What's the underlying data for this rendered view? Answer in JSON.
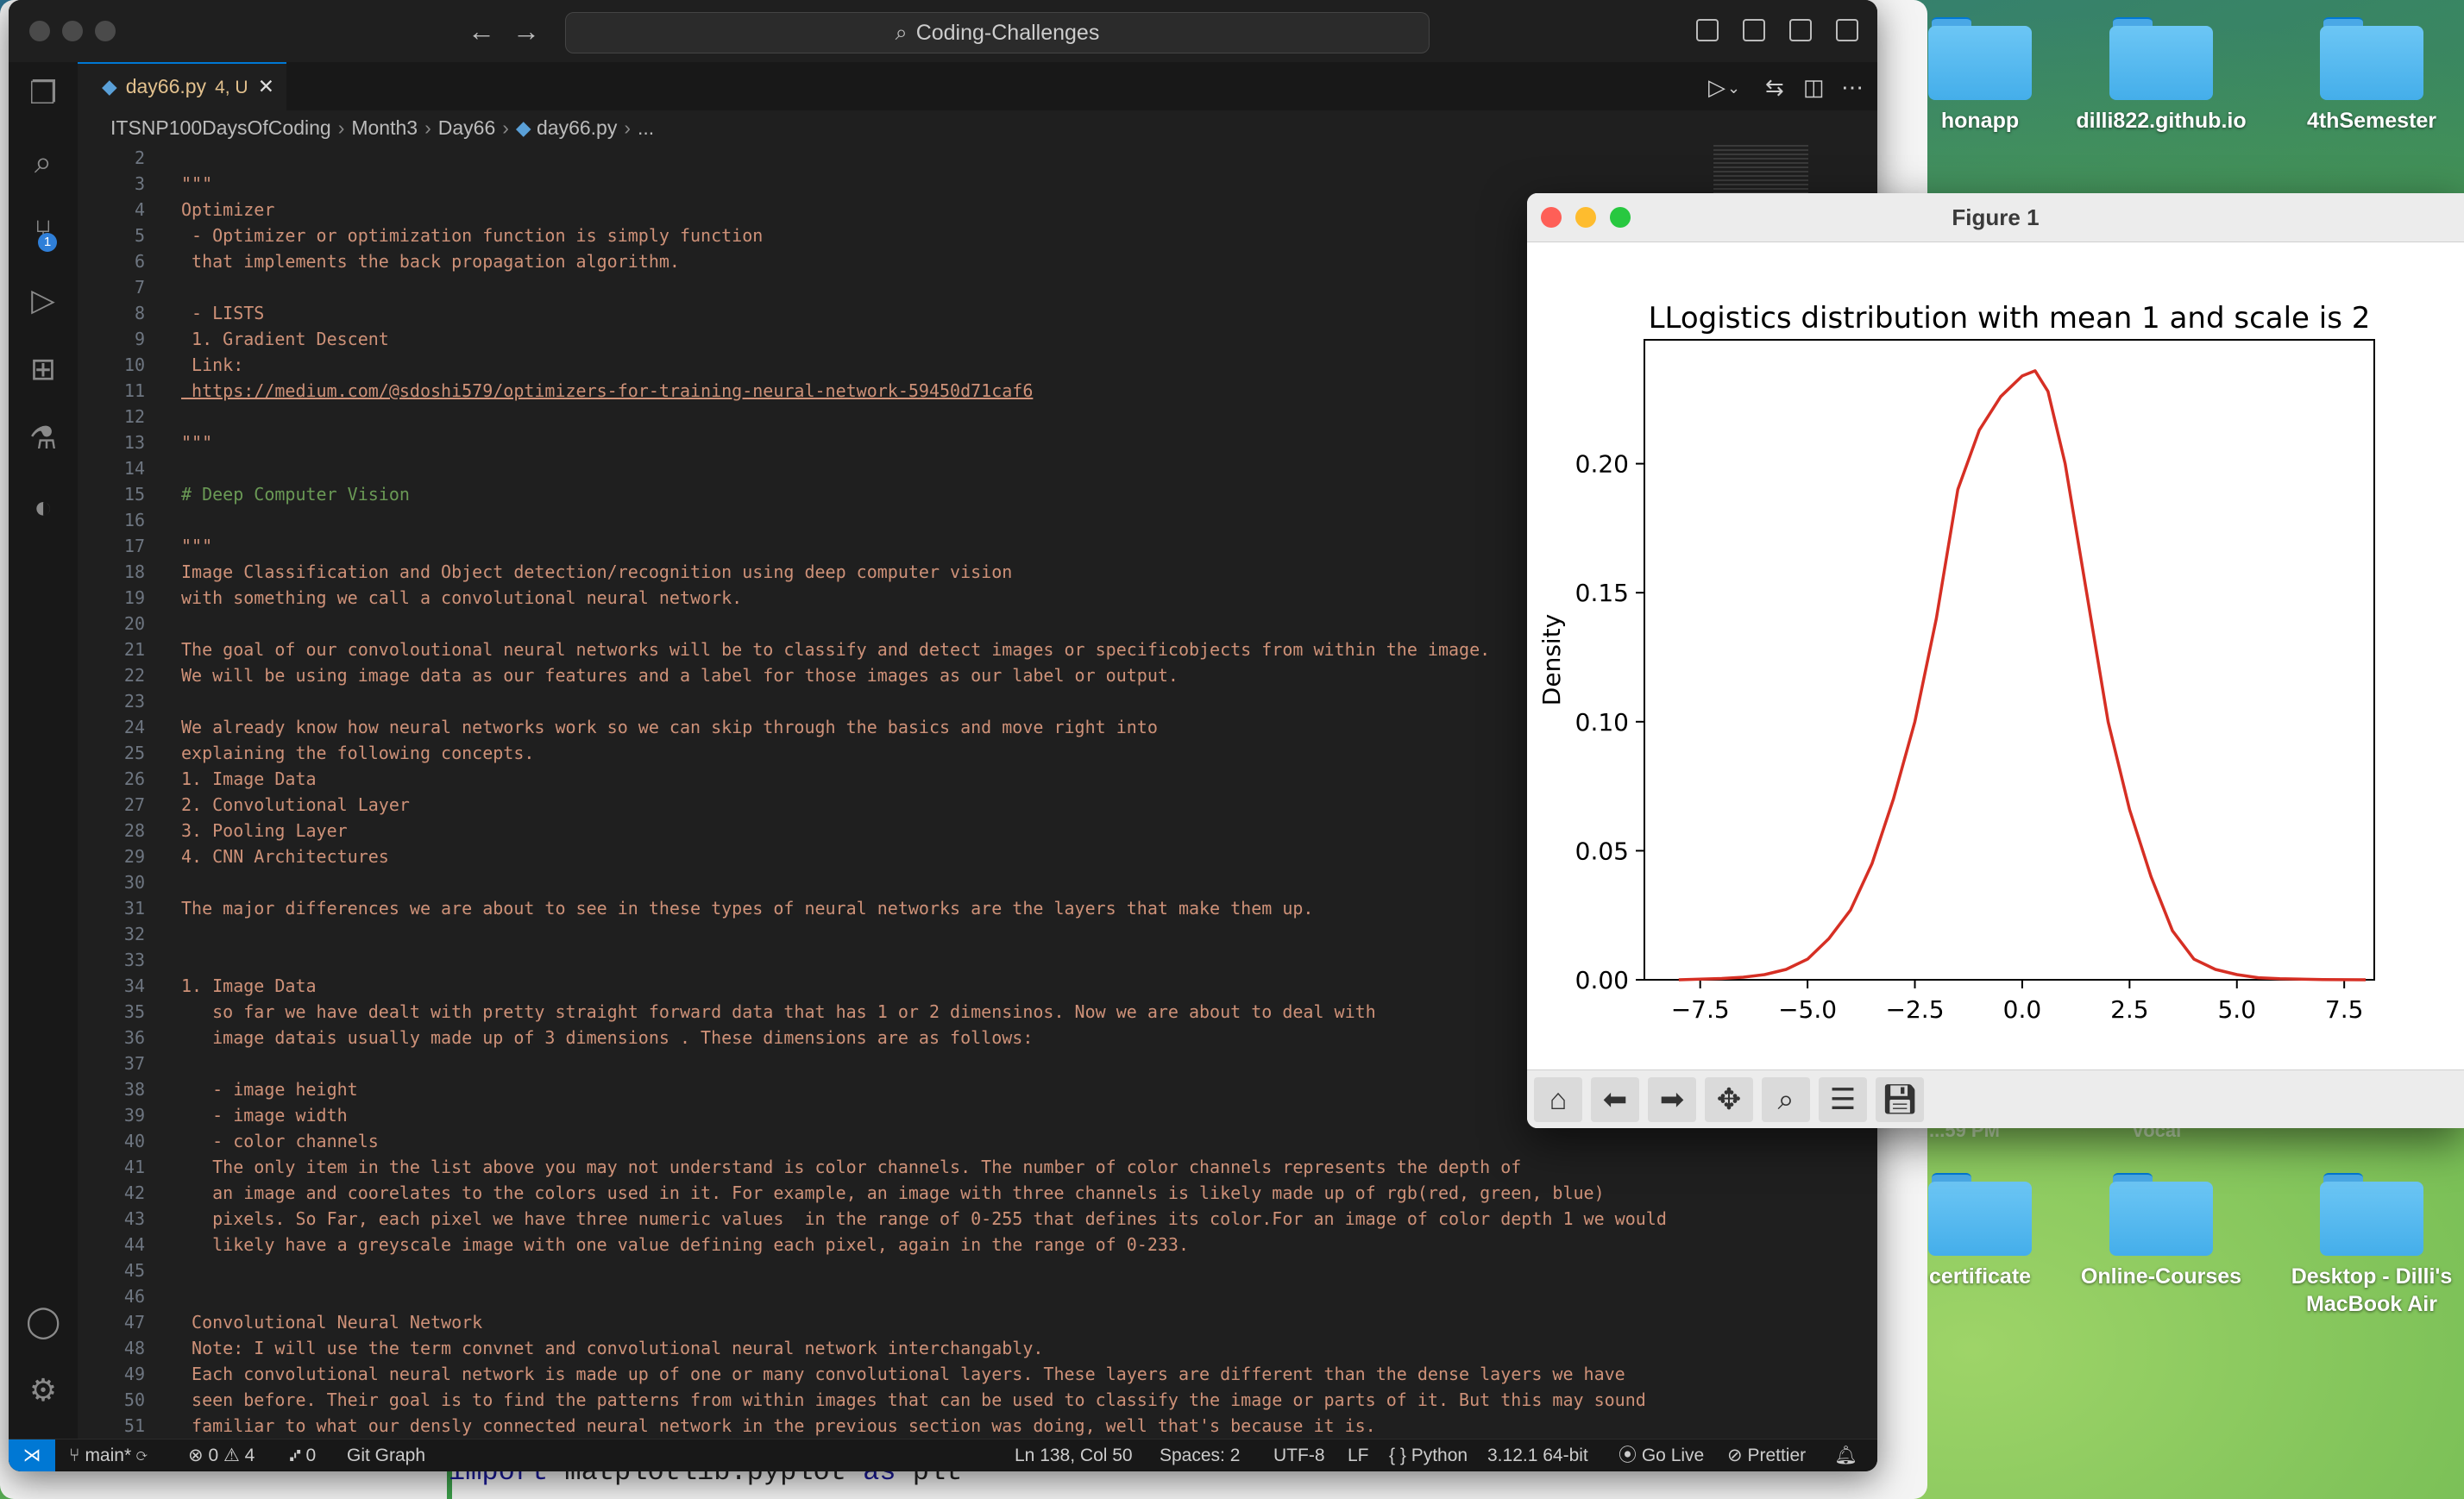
{
  "vscode": {
    "command_center": "Coding-Challenges",
    "tab": {
      "filename": "day66.py",
      "problems": "4, U"
    },
    "breadcrumb": [
      "ITSNP100DaysOfCoding",
      "Month3",
      "Day66",
      "day66.py",
      "..."
    ],
    "activity_badge": "1",
    "editor_lines": [
      {
        "n": "2",
        "t": ""
      },
      {
        "n": "3",
        "t": "\"\"\""
      },
      {
        "n": "4",
        "t": "Optimizer"
      },
      {
        "n": "5",
        "t": " - Optimizer or optimization function is simply function"
      },
      {
        "n": "6",
        "t": " that implements the back propagation algorithm."
      },
      {
        "n": "7",
        "t": ""
      },
      {
        "n": "8",
        "t": " - LISTS"
      },
      {
        "n": "9",
        "t": " 1. Gradient Descent"
      },
      {
        "n": "10",
        "t": " Link:"
      },
      {
        "n": "11",
        "t": " https://medium.com/@sdoshi579/optimizers-for-training-neural-network-59450d71caf6",
        "link": true
      },
      {
        "n": "12",
        "t": ""
      },
      {
        "n": "13",
        "t": "\"\"\""
      },
      {
        "n": "14",
        "t": ""
      },
      {
        "n": "15",
        "t": "# Deep Computer Vision",
        "comment": true
      },
      {
        "n": "16",
        "t": ""
      },
      {
        "n": "17",
        "t": "\"\"\""
      },
      {
        "n": "18",
        "t": "Image Classification and Object detection/recognition using deep computer vision"
      },
      {
        "n": "19",
        "t": "with something we call a convolutional neural network."
      },
      {
        "n": "20",
        "t": ""
      },
      {
        "n": "21",
        "t": "The goal of our convoloutional neural networks will be to classify and detect images or specificobjects from within the image."
      },
      {
        "n": "22",
        "t": "We will be using image data as our features and a label for those images as our label or output."
      },
      {
        "n": "23",
        "t": ""
      },
      {
        "n": "24",
        "t": "We already know how neural networks work so we can skip through the basics and move right into"
      },
      {
        "n": "25",
        "t": "explaining the following concepts."
      },
      {
        "n": "26",
        "t": "1. Image Data"
      },
      {
        "n": "27",
        "t": "2. Convolutional Layer"
      },
      {
        "n": "28",
        "t": "3. Pooling Layer"
      },
      {
        "n": "29",
        "t": "4. CNN Architectures"
      },
      {
        "n": "30",
        "t": ""
      },
      {
        "n": "31",
        "t": "The major differences we are about to see in these types of neural networks are the layers that make them up."
      },
      {
        "n": "32",
        "t": ""
      },
      {
        "n": "33",
        "t": ""
      },
      {
        "n": "34",
        "t": "1. Image Data"
      },
      {
        "n": "35",
        "t": "   so far we have dealt with pretty straight forward data that has 1 or 2 dimensinos. Now we are about to deal with"
      },
      {
        "n": "36",
        "t": "   image datais usually made up of 3 dimensions . These dimensions are as follows:"
      },
      {
        "n": "37",
        "t": ""
      },
      {
        "n": "38",
        "t": "   - image height"
      },
      {
        "n": "39",
        "t": "   - image width"
      },
      {
        "n": "40",
        "t": "   - color channels"
      },
      {
        "n": "41",
        "t": "   The only item in the list above you may not understand is color channels. The number of color channels represents the depth of"
      },
      {
        "n": "42",
        "t": "   an image and coorelates to the colors used in it. For example, an image with three channels is likely made up of rgb(red, green, blue)"
      },
      {
        "n": "43",
        "t": "   pixels. So Far, each pixel we have three numeric values  in the range of 0-255 that defines its color.For an image of color depth 1 we would"
      },
      {
        "n": "44",
        "t": "   likely have a greyscale image with one value defining each pixel, again in the range of 0-233."
      },
      {
        "n": "45",
        "t": ""
      },
      {
        "n": "46",
        "t": ""
      },
      {
        "n": "47",
        "t": " Convolutional Neural Network"
      },
      {
        "n": "48",
        "t": " Note: I will use the term convnet and convolutional neural network interchangably."
      },
      {
        "n": "49",
        "t": " Each convolutional neural network is made up of one or many convolutional layers. These layers are different than the dense layers we have"
      },
      {
        "n": "50",
        "t": " seen before. Their goal is to find the patterns from within images that can be used to classify the image or parts of it. But this may sound"
      },
      {
        "n": "51",
        "t": " familiar to what our densly connected neural network in the previous section was doing, well that's because it is."
      }
    ],
    "status": {
      "branch": "main*",
      "errors": "0",
      "warnings": "4",
      "ports": "0",
      "git_graph": "Git Graph",
      "position": "Ln 138, Col 50",
      "spaces": "Spaces: 2",
      "encoding": "UTF-8",
      "eol": "LF",
      "language": "Python",
      "interpreter": "3.12.1 64-bit",
      "golive": "Go Live",
      "prettier": "Prettier"
    }
  },
  "background_code": {
    "keyword": "import",
    "module": "matplotlib.pyplot",
    "as": "as",
    "alias": "plt"
  },
  "desktop": {
    "icons_top": [
      "honapp",
      "dilli822.github.io",
      "4thSemester"
    ],
    "icons_bottom": [
      "certificate",
      "Online-Courses",
      "Desktop - Dilli's MacBook Air"
    ],
    "faded_labels": [
      "...59 PM",
      "vocal"
    ]
  },
  "figure": {
    "window_title": "Figure 1",
    "toolbar": [
      "home-icon",
      "back-icon",
      "forward-icon",
      "pan-icon",
      "zoom-icon",
      "configure-icon",
      "save-icon"
    ]
  },
  "chart_data": {
    "type": "line",
    "title": "LLogistics distribution  with mean 1 and scale is 2",
    "xlabel": "",
    "ylabel": "Density",
    "xlim": [
      -8.8,
      8.2
    ],
    "ylim": [
      0,
      0.248
    ],
    "xticks": [
      -7.5,
      -5.0,
      -2.5,
      0.0,
      2.5,
      5.0,
      7.5
    ],
    "xtick_labels": [
      "−7.5",
      "−5.0",
      "−2.5",
      "0.0",
      "2.5",
      "5.0",
      "7.5"
    ],
    "yticks": [
      0.0,
      0.05,
      0.1,
      0.15,
      0.2
    ],
    "ytick_labels": [
      "0.00",
      "0.05",
      "0.10",
      "0.15",
      "0.20"
    ],
    "color": "#d62f24",
    "series": [
      {
        "x": [
          -8.0,
          -7.0,
          -6.5,
          -6.0,
          -5.5,
          -5.0,
          -4.5,
          -4.0,
          -3.5,
          -3.0,
          -2.5,
          -2.0,
          -1.5,
          -1.0,
          -0.5,
          0.0,
          0.3,
          0.6,
          1.0,
          1.5,
          2.0,
          2.5,
          3.0,
          3.5,
          4.0,
          4.5,
          5.0,
          5.5,
          6.0,
          7.0,
          8.0
        ],
        "y": [
          0.0,
          0.0005,
          0.001,
          0.002,
          0.004,
          0.008,
          0.016,
          0.027,
          0.045,
          0.07,
          0.1,
          0.14,
          0.19,
          0.213,
          0.226,
          0.234,
          0.236,
          0.228,
          0.2,
          0.15,
          0.1,
          0.066,
          0.04,
          0.019,
          0.008,
          0.004,
          0.002,
          0.0008,
          0.0004,
          0.0001,
          0.0
        ]
      }
    ]
  }
}
